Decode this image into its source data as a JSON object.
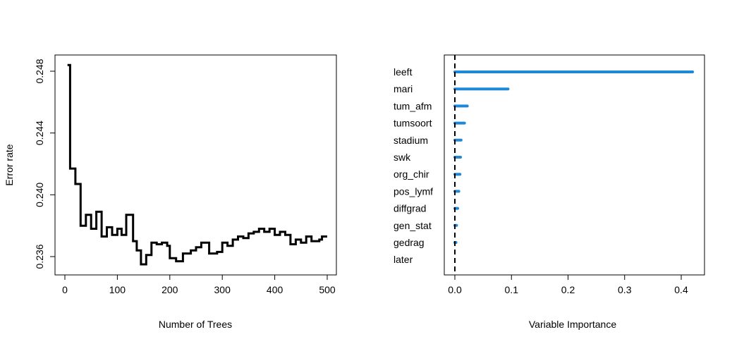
{
  "chart_data": [
    {
      "type": "line",
      "xlabel": "Number of Trees",
      "ylabel": "Error rate",
      "xlim": [
        0,
        500
      ],
      "ylim": [
        0.235,
        0.249
      ],
      "xticks": [
        "0",
        "100",
        "200",
        "300",
        "400",
        "500"
      ],
      "yticks": [
        "0.236",
        "0.240",
        "0.244",
        "0.248"
      ],
      "color": "#000000",
      "steps": [
        [
          5,
          0.2484
        ],
        [
          10,
          0.2417
        ],
        [
          20,
          0.2407
        ],
        [
          30,
          0.238
        ],
        [
          40,
          0.2387
        ],
        [
          50,
          0.2378
        ],
        [
          60,
          0.2389
        ],
        [
          70,
          0.2373
        ],
        [
          80,
          0.2379
        ],
        [
          90,
          0.2374
        ],
        [
          100,
          0.2378
        ],
        [
          108,
          0.2374
        ],
        [
          117,
          0.2387
        ],
        [
          130,
          0.237
        ],
        [
          137,
          0.2364
        ],
        [
          145,
          0.2355
        ],
        [
          155,
          0.2361
        ],
        [
          165,
          0.2369
        ],
        [
          175,
          0.2368
        ],
        [
          185,
          0.2369
        ],
        [
          195,
          0.2367
        ],
        [
          200,
          0.2359
        ],
        [
          212,
          0.2357
        ],
        [
          225,
          0.2362
        ],
        [
          240,
          0.2364
        ],
        [
          250,
          0.2366
        ],
        [
          260,
          0.2369
        ],
        [
          275,
          0.2362
        ],
        [
          290,
          0.2363
        ],
        [
          300,
          0.2369
        ],
        [
          310,
          0.2367
        ],
        [
          320,
          0.2371
        ],
        [
          330,
          0.2373
        ],
        [
          340,
          0.2372
        ],
        [
          350,
          0.2375
        ],
        [
          360,
          0.2376
        ],
        [
          370,
          0.2378
        ],
        [
          380,
          0.2376
        ],
        [
          390,
          0.2378
        ],
        [
          400,
          0.2374
        ],
        [
          410,
          0.2376
        ],
        [
          420,
          0.2374
        ],
        [
          430,
          0.2368
        ],
        [
          440,
          0.2371
        ],
        [
          450,
          0.2369
        ],
        [
          460,
          0.2373
        ],
        [
          470,
          0.237
        ],
        [
          485,
          0.2371
        ],
        [
          490,
          0.2373
        ],
        [
          500,
          0.2373
        ]
      ]
    },
    {
      "type": "bar",
      "orientation": "horizontal",
      "xlabel": "Variable Importance",
      "ylabel": "",
      "xlim": [
        -0.015,
        0.44
      ],
      "xticks": [
        "0.0",
        "0.1",
        "0.2",
        "0.3",
        "0.4"
      ],
      "reference_line": 0,
      "color": "#1e88d8",
      "categories": [
        "leeft",
        "mari",
        "tum_afm",
        "tumsoort",
        "stadium",
        "swk",
        "org_chir",
        "pos_lymf",
        "diffgrad",
        "gen_stat",
        "gedrag",
        "later"
      ],
      "values": [
        0.42,
        0.094,
        0.022,
        0.017,
        0.011,
        0.01,
        0.009,
        0.007,
        0.005,
        0.003,
        0.002,
        0.0
      ]
    }
  ]
}
